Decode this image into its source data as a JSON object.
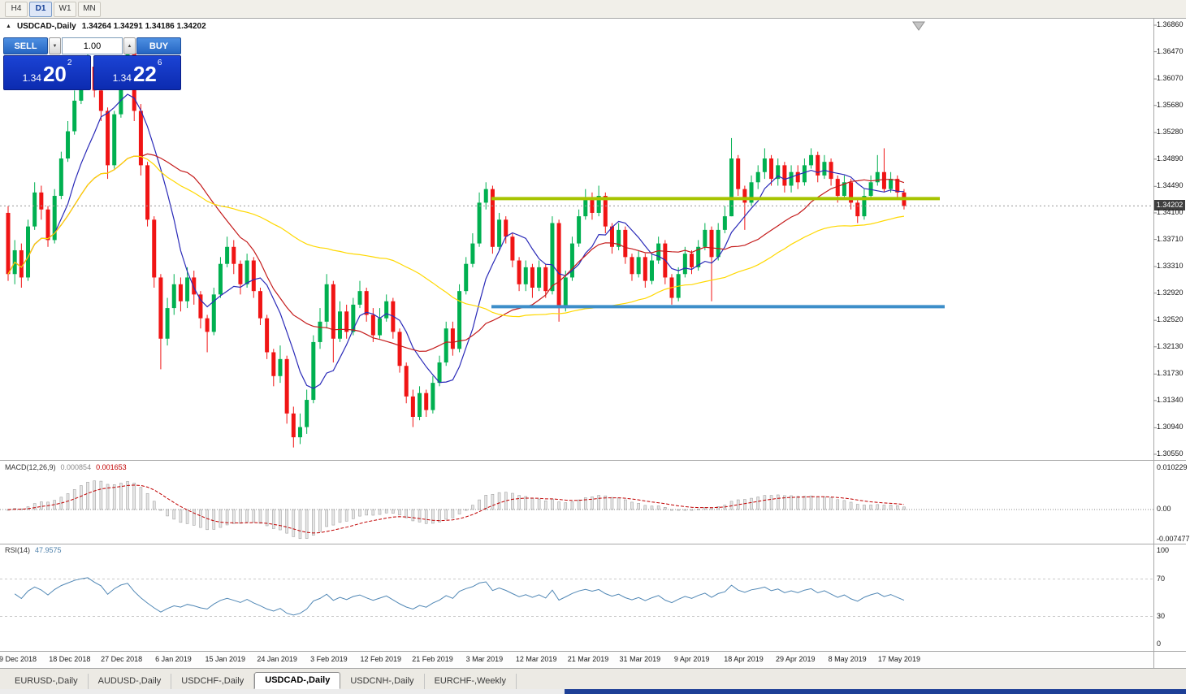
{
  "toolbar": {
    "timeframes": [
      "H4",
      "D1",
      "W1",
      "MN"
    ],
    "active_timeframe": "D1"
  },
  "icons": {
    "panel_collapse": "▲",
    "spin_down": "▼",
    "spin_up": "▲"
  },
  "one_click": {
    "sell_label": "SELL",
    "buy_label": "BUY",
    "volume": "1.00",
    "sell": {
      "figure": "1.34",
      "pips": "20",
      "point": "2"
    },
    "buy": {
      "figure": "1.34",
      "pips": "22",
      "point": "6"
    }
  },
  "colors": {
    "candle_up": "#00b050",
    "candle_down": "#f01414",
    "macd_histogram_fill": "#e6e6e6",
    "macd_histogram_stroke": "#a3a3a3",
    "macd_signal": "#c00000",
    "rsi_line": "#5087b5",
    "bid_line": "#9a9a9a"
  },
  "tabs": [
    {
      "label": "EURUSD-,Daily",
      "active": false
    },
    {
      "label": "AUDUSD-,Daily",
      "active": false
    },
    {
      "label": "USDCHF-,Daily",
      "active": false
    },
    {
      "label": "USDCAD-,Daily",
      "active": true
    },
    {
      "label": "USDCNH-,Daily",
      "active": false
    },
    {
      "label": "EURCHF-,Weekly",
      "active": false
    }
  ],
  "chart_data": {
    "type": "candlestick",
    "title": "USDCAD-,Daily",
    "timeframe": "D1",
    "ohlc_display": "1.34264 1.34291 1.34186 1.34202",
    "last_price": "1.34202",
    "y_range": [
      1.3055,
      1.3686
    ],
    "y_ticks": [
      "1.36860",
      "1.36470",
      "1.36070",
      "1.35680",
      "1.35280",
      "1.34890",
      "1.34490",
      "1.34100",
      "1.33710",
      "1.33310",
      "1.32920",
      "1.32520",
      "1.32130",
      "1.31730",
      "1.31340",
      "1.30940",
      "1.30550"
    ],
    "x_labels": [
      "9 Dec 2018",
      "18 Dec 2018",
      "27 Dec 2018",
      "6 Jan 2019",
      "15 Jan 2019",
      "24 Jan 2019",
      "3 Feb 2019",
      "12 Feb 2019",
      "21 Feb 2019",
      "3 Mar 2019",
      "12 Mar 2019",
      "21 Mar 2019",
      "31 Mar 2019",
      "9 Apr 2019",
      "18 Apr 2019",
      "29 Apr 2019",
      "8 May 2019",
      "17 May 2019"
    ],
    "first_open": 1.341,
    "candle_format": [
      "close",
      "high",
      "low"
    ],
    "candles": [
      [
        1.332,
        1.342,
        1.331
      ],
      [
        1.3355,
        1.337,
        1.3305
      ],
      [
        1.3315,
        1.3365,
        1.33
      ],
      [
        1.339,
        1.34,
        1.331
      ],
      [
        1.344,
        1.3455,
        1.3385
      ],
      [
        1.3415,
        1.345,
        1.34
      ],
      [
        1.337,
        1.342,
        1.336
      ],
      [
        1.3435,
        1.3445,
        1.3365
      ],
      [
        1.349,
        1.35,
        1.343
      ],
      [
        1.353,
        1.3545,
        1.3485
      ],
      [
        1.3575,
        1.359,
        1.3525
      ],
      [
        1.3605,
        1.362,
        1.357
      ],
      [
        1.3625,
        1.3645,
        1.36
      ],
      [
        1.359,
        1.363,
        1.358
      ],
      [
        1.356,
        1.36,
        1.3545
      ],
      [
        1.348,
        1.3565,
        1.346
      ],
      [
        1.3555,
        1.356,
        1.3475
      ],
      [
        1.3615,
        1.3625,
        1.355
      ],
      [
        1.3645,
        1.3665,
        1.361
      ],
      [
        1.356,
        1.365,
        1.3545
      ],
      [
        1.348,
        1.357,
        1.3465
      ],
      [
        1.34,
        1.3485,
        1.339
      ],
      [
        1.3315,
        1.3405,
        1.33
      ],
      [
        1.3225,
        1.332,
        1.318
      ],
      [
        1.327,
        1.3285,
        1.3215
      ],
      [
        1.3305,
        1.332,
        1.326
      ],
      [
        1.328,
        1.3315,
        1.3265
      ],
      [
        1.3315,
        1.333,
        1.327
      ],
      [
        1.329,
        1.3325,
        1.3275
      ],
      [
        1.3255,
        1.3295,
        1.324
      ],
      [
        1.3235,
        1.326,
        1.3205
      ],
      [
        1.329,
        1.33,
        1.323
      ],
      [
        1.3335,
        1.3345,
        1.3285
      ],
      [
        1.336,
        1.3375,
        1.333
      ],
      [
        1.3335,
        1.337,
        1.332
      ],
      [
        1.3305,
        1.334,
        1.329
      ],
      [
        1.334,
        1.335,
        1.33
      ],
      [
        1.3295,
        1.3345,
        1.3285
      ],
      [
        1.3255,
        1.33,
        1.3245
      ],
      [
        1.3205,
        1.326,
        1.3195
      ],
      [
        1.317,
        1.321,
        1.3155
      ],
      [
        1.3195,
        1.3215,
        1.316
      ],
      [
        1.3115,
        1.32,
        1.31
      ],
      [
        1.308,
        1.3125,
        1.3065
      ],
      [
        1.3095,
        1.3115,
        1.307
      ],
      [
        1.3135,
        1.315,
        1.3085
      ],
      [
        1.322,
        1.323,
        1.313
      ],
      [
        1.325,
        1.327,
        1.321
      ],
      [
        1.3305,
        1.332,
        1.324
      ],
      [
        1.3225,
        1.331,
        1.319
      ],
      [
        1.3265,
        1.328,
        1.322
      ],
      [
        1.3235,
        1.3275,
        1.3225
      ],
      [
        1.3275,
        1.3285,
        1.323
      ],
      [
        1.3295,
        1.331,
        1.327
      ],
      [
        1.326,
        1.33,
        1.325
      ],
      [
        1.323,
        1.327,
        1.322
      ],
      [
        1.3255,
        1.327,
        1.3225
      ],
      [
        1.328,
        1.329,
        1.325
      ],
      [
        1.3235,
        1.3285,
        1.3225
      ],
      [
        1.3185,
        1.324,
        1.3175
      ],
      [
        1.314,
        1.319,
        1.313
      ],
      [
        1.311,
        1.315,
        1.3095
      ],
      [
        1.3145,
        1.3155,
        1.3105
      ],
      [
        1.312,
        1.315,
        1.311
      ],
      [
        1.316,
        1.317,
        1.3115
      ],
      [
        1.319,
        1.32,
        1.3155
      ],
      [
        1.324,
        1.325,
        1.3185
      ],
      [
        1.321,
        1.325,
        1.32
      ],
      [
        1.3295,
        1.3305,
        1.3205
      ],
      [
        1.3335,
        1.3345,
        1.329
      ],
      [
        1.3365,
        1.338,
        1.333
      ],
      [
        1.3425,
        1.344,
        1.336
      ],
      [
        1.3445,
        1.3455,
        1.3415
      ],
      [
        1.336,
        1.345,
        1.335
      ],
      [
        1.34,
        1.341,
        1.3355
      ],
      [
        1.3375,
        1.3405,
        1.3365
      ],
      [
        1.334,
        1.338,
        1.333
      ],
      [
        1.3305,
        1.3345,
        1.3295
      ],
      [
        1.333,
        1.334,
        1.3295
      ],
      [
        1.33,
        1.3335,
        1.3285
      ],
      [
        1.333,
        1.334,
        1.3295
      ],
      [
        1.3295,
        1.3335,
        1.3285
      ],
      [
        1.3395,
        1.3405,
        1.329
      ],
      [
        1.327,
        1.34,
        1.325
      ],
      [
        1.3315,
        1.3325,
        1.3265
      ],
      [
        1.3365,
        1.3375,
        1.331
      ],
      [
        1.3405,
        1.3415,
        1.336
      ],
      [
        1.343,
        1.3445,
        1.34
      ],
      [
        1.341,
        1.344,
        1.34
      ],
      [
        1.3435,
        1.345,
        1.3405
      ],
      [
        1.339,
        1.344,
        1.338
      ],
      [
        1.336,
        1.3395,
        1.335
      ],
      [
        1.3385,
        1.3395,
        1.3355
      ],
      [
        1.3345,
        1.339,
        1.3335
      ],
      [
        1.332,
        1.335,
        1.331
      ],
      [
        1.3345,
        1.3355,
        1.3315
      ],
      [
        1.331,
        1.335,
        1.33
      ],
      [
        1.334,
        1.335,
        1.3305
      ],
      [
        1.3365,
        1.3375,
        1.3335
      ],
      [
        1.3315,
        1.337,
        1.3305
      ],
      [
        1.3285,
        1.332,
        1.3275
      ],
      [
        1.332,
        1.333,
        1.328
      ],
      [
        1.335,
        1.336,
        1.3315
      ],
      [
        1.333,
        1.3355,
        1.332
      ],
      [
        1.336,
        1.337,
        1.3325
      ],
      [
        1.3385,
        1.3395,
        1.3355
      ],
      [
        1.3345,
        1.339,
        1.328
      ],
      [
        1.3385,
        1.3395,
        1.334
      ],
      [
        1.3405,
        1.342,
        1.338
      ],
      [
        1.349,
        1.352,
        1.3405
      ],
      [
        1.3445,
        1.3495,
        1.3435
      ],
      [
        1.3425,
        1.345,
        1.3385
      ],
      [
        1.3455,
        1.3465,
        1.342
      ],
      [
        1.347,
        1.348,
        1.3445
      ],
      [
        1.349,
        1.3505,
        1.346
      ],
      [
        1.346,
        1.3495,
        1.345
      ],
      [
        1.348,
        1.349,
        1.345
      ],
      [
        1.345,
        1.3485,
        1.344
      ],
      [
        1.347,
        1.348,
        1.344
      ],
      [
        1.3455,
        1.348,
        1.3445
      ],
      [
        1.348,
        1.349,
        1.345
      ],
      [
        1.3495,
        1.3505,
        1.3475
      ],
      [
        1.3465,
        1.35,
        1.3455
      ],
      [
        1.3485,
        1.3495,
        1.346
      ],
      [
        1.346,
        1.349,
        1.345
      ],
      [
        1.3435,
        1.3465,
        1.3425
      ],
      [
        1.3455,
        1.3465,
        1.343
      ],
      [
        1.3425,
        1.346,
        1.3415
      ],
      [
        1.3405,
        1.343,
        1.3395
      ],
      [
        1.3435,
        1.3445,
        1.34
      ],
      [
        1.3455,
        1.3465,
        1.343
      ],
      [
        1.347,
        1.3495,
        1.345
      ],
      [
        1.3445,
        1.3505,
        1.344
      ],
      [
        1.346,
        1.347,
        1.344
      ],
      [
        1.344,
        1.3465,
        1.343
      ],
      [
        1.34202,
        1.3445,
        1.3415
      ]
    ],
    "moving_averages": [
      {
        "period": 8,
        "color": "#2a2ab8"
      },
      {
        "period": 21,
        "color": "#c41a1a"
      },
      {
        "period": 55,
        "color": "#ffd800"
      }
    ],
    "hlines": [
      {
        "name": "resistance-line",
        "price": 1.3431,
        "color": "#a7c400",
        "width": 4,
        "x1": 605,
        "x2": 1157
      },
      {
        "name": "support-line",
        "price": 1.3272,
        "color": "#3d8ec9",
        "width": 4,
        "x1": 605,
        "x2": 1163
      }
    ],
    "macd": {
      "label": "MACD(12,26,9)",
      "fast": 12,
      "slow": 26,
      "signal": 9,
      "display_main": "0.000854",
      "display_signal": "0.001653",
      "scale": [
        "0.010229",
        "0.00",
        "-0.007477"
      ]
    },
    "rsi": {
      "label": "RSI(14)",
      "period": 14,
      "display": "47.9575",
      "scale": [
        "100",
        "70",
        "30",
        "0"
      ],
      "levels": [
        70,
        30
      ]
    }
  }
}
